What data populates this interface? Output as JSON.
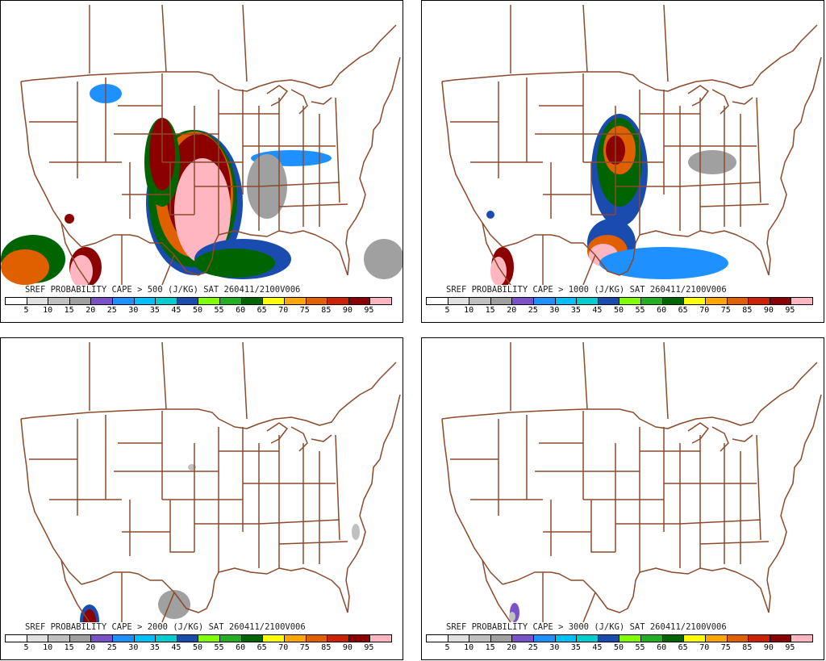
{
  "colors": {
    "border": "#8b4a2b",
    "legend": [
      "#ffffff",
      "#e0e0e0",
      "#c0c0c0",
      "#a0a0a0",
      "#7a52c7",
      "#1e90ff",
      "#00bfff",
      "#00cdcd",
      "#1a4cb0",
      "#7fff00",
      "#22b022",
      "#006400",
      "#ffff00",
      "#ffa500",
      "#e06000",
      "#cc2200",
      "#8b0000",
      "#ffb6c1"
    ]
  },
  "legend_labels": [
    "5",
    "10",
    "15",
    "20",
    "25",
    "30",
    "35",
    "45",
    "50",
    "55",
    "60",
    "65",
    "70",
    "75",
    "85",
    "90",
    "95"
  ],
  "panels": [
    {
      "caption": "SREF PROBABILITY CAPE > 500 (J/KG) SAT 260411/2100V006"
    },
    {
      "caption": "SREF PROBABILITY CAPE > 1000 (J/KG) SAT 260411/2100V006"
    },
    {
      "caption": "SREF PROBABILITY CAPE > 2000 (J/KG) SAT 260411/2100V006"
    },
    {
      "caption": "SREF PROBABILITY CAPE > 3000 (J/KG) SAT 260411/2100V006"
    }
  ]
}
